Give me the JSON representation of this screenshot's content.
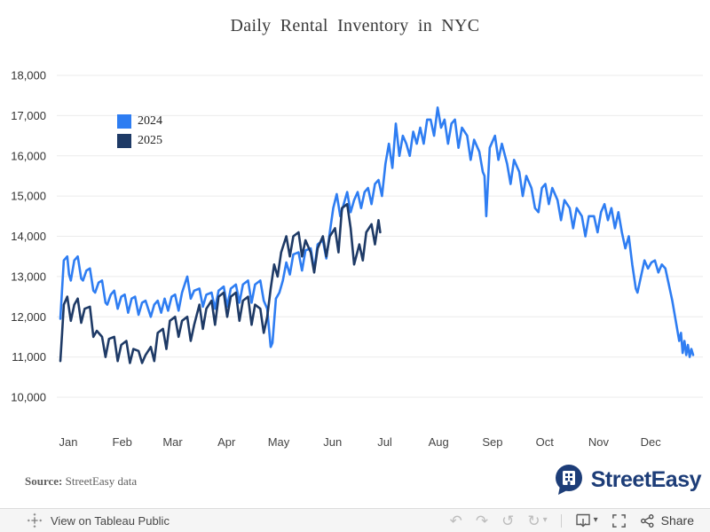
{
  "title": "Daily Rental Inventory in NYC",
  "legend": [
    {
      "label": "2024",
      "color": "#2e7df2"
    },
    {
      "label": "2025",
      "color": "#1e3a66"
    }
  ],
  "source": {
    "label": "Source:",
    "text": "StreetEasy data"
  },
  "brand": {
    "name": "StreetEasy",
    "color": "#1d3d78"
  },
  "footer": {
    "view_link": "View on Tableau Public",
    "share_label": "Share",
    "undo_glyph": "↶",
    "redo_glyph": "↷",
    "revert_glyph": "↺",
    "refresh_glyph": "↻",
    "caret_glyph": "▾"
  },
  "chart_data": {
    "type": "line",
    "title": "Daily Rental Inventory in NYC",
    "grid": "horizontal",
    "legend_position": "top-left-inside",
    "x_unit": "day-of-year",
    "x_axis": {
      "tick_labels": [
        "Jan",
        "Feb",
        "Mar",
        "Apr",
        "May",
        "Jun",
        "Jul",
        "Aug",
        "Sep",
        "Oct",
        "Nov",
        "Dec"
      ],
      "month_start_days": [
        1,
        32,
        61,
        92,
        122,
        153,
        183,
        214,
        245,
        275,
        306,
        336
      ]
    },
    "y_axis": {
      "range": [
        10000,
        18000
      ],
      "ticks": [
        10000,
        11000,
        12000,
        13000,
        14000,
        15000,
        16000,
        17000,
        18000
      ],
      "tick_labels": [
        "10,000",
        "11,000",
        "12,000",
        "13,000",
        "14,000",
        "15,000",
        "16,000",
        "17,000",
        "18,000"
      ]
    },
    "series": [
      {
        "name": "2024",
        "color": "#2e7df2",
        "points": [
          [
            1,
            11950
          ],
          [
            2,
            12700
          ],
          [
            3,
            13400
          ],
          [
            5,
            13500
          ],
          [
            6,
            13050
          ],
          [
            7,
            12900
          ],
          [
            9,
            13400
          ],
          [
            11,
            13500
          ],
          [
            13,
            12950
          ],
          [
            14,
            12900
          ],
          [
            16,
            13150
          ],
          [
            18,
            13200
          ],
          [
            20,
            12650
          ],
          [
            21,
            12600
          ],
          [
            23,
            12850
          ],
          [
            25,
            12900
          ],
          [
            27,
            12350
          ],
          [
            28,
            12300
          ],
          [
            30,
            12550
          ],
          [
            32,
            12650
          ],
          [
            34,
            12200
          ],
          [
            36,
            12500
          ],
          [
            38,
            12550
          ],
          [
            40,
            12100
          ],
          [
            42,
            12450
          ],
          [
            44,
            12500
          ],
          [
            46,
            12050
          ],
          [
            48,
            12350
          ],
          [
            50,
            12400
          ],
          [
            53,
            12000
          ],
          [
            55,
            12300
          ],
          [
            57,
            12400
          ],
          [
            59,
            12100
          ],
          [
            61,
            12450
          ],
          [
            63,
            12150
          ],
          [
            65,
            12500
          ],
          [
            67,
            12550
          ],
          [
            69,
            12150
          ],
          [
            71,
            12600
          ],
          [
            74,
            13000
          ],
          [
            76,
            12450
          ],
          [
            78,
            12650
          ],
          [
            81,
            12700
          ],
          [
            83,
            12250
          ],
          [
            85,
            12550
          ],
          [
            88,
            12600
          ],
          [
            90,
            12200
          ],
          [
            92,
            12650
          ],
          [
            95,
            12750
          ],
          [
            97,
            12250
          ],
          [
            99,
            12700
          ],
          [
            102,
            12800
          ],
          [
            104,
            12350
          ],
          [
            106,
            12800
          ],
          [
            109,
            12900
          ],
          [
            111,
            12350
          ],
          [
            113,
            12800
          ],
          [
            116,
            12900
          ],
          [
            118,
            12400
          ],
          [
            120,
            12200
          ],
          [
            121,
            11700
          ],
          [
            122,
            11250
          ],
          [
            123,
            11350
          ],
          [
            125,
            12450
          ],
          [
            127,
            12600
          ],
          [
            129,
            12900
          ],
          [
            131,
            13350
          ],
          [
            133,
            13050
          ],
          [
            135,
            13550
          ],
          [
            138,
            13600
          ],
          [
            140,
            13150
          ],
          [
            142,
            13650
          ],
          [
            145,
            13700
          ],
          [
            147,
            13150
          ],
          [
            149,
            13800
          ],
          [
            152,
            13900
          ],
          [
            154,
            13450
          ],
          [
            156,
            14100
          ],
          [
            158,
            14700
          ],
          [
            160,
            15050
          ],
          [
            162,
            14500
          ],
          [
            164,
            14800
          ],
          [
            166,
            15100
          ],
          [
            168,
            14600
          ],
          [
            170,
            14900
          ],
          [
            172,
            15100
          ],
          [
            174,
            14700
          ],
          [
            176,
            15100
          ],
          [
            178,
            15200
          ],
          [
            180,
            14800
          ],
          [
            182,
            15300
          ],
          [
            184,
            15400
          ],
          [
            186,
            15000
          ],
          [
            188,
            15800
          ],
          [
            190,
            16300
          ],
          [
            192,
            15700
          ],
          [
            194,
            16800
          ],
          [
            196,
            16000
          ],
          [
            198,
            16500
          ],
          [
            200,
            16300
          ],
          [
            202,
            16000
          ],
          [
            204,
            16600
          ],
          [
            206,
            16300
          ],
          [
            208,
            16700
          ],
          [
            210,
            16300
          ],
          [
            212,
            16900
          ],
          [
            214,
            16900
          ],
          [
            216,
            16500
          ],
          [
            218,
            17200
          ],
          [
            220,
            16700
          ],
          [
            222,
            16900
          ],
          [
            224,
            16300
          ],
          [
            226,
            16800
          ],
          [
            228,
            16900
          ],
          [
            230,
            16200
          ],
          [
            232,
            16700
          ],
          [
            235,
            16500
          ],
          [
            237,
            15900
          ],
          [
            239,
            16400
          ],
          [
            242,
            16100
          ],
          [
            244,
            15600
          ],
          [
            245,
            15500
          ],
          [
            246,
            14500
          ],
          [
            248,
            16200
          ],
          [
            251,
            16500
          ],
          [
            253,
            15900
          ],
          [
            255,
            16300
          ],
          [
            258,
            15800
          ],
          [
            260,
            15300
          ],
          [
            262,
            15900
          ],
          [
            265,
            15600
          ],
          [
            267,
            15000
          ],
          [
            269,
            15500
          ],
          [
            272,
            15200
          ],
          [
            274,
            14700
          ],
          [
            276,
            14600
          ],
          [
            278,
            15200
          ],
          [
            280,
            15300
          ],
          [
            282,
            14800
          ],
          [
            284,
            15200
          ],
          [
            287,
            14900
          ],
          [
            289,
            14400
          ],
          [
            291,
            14900
          ],
          [
            294,
            14700
          ],
          [
            296,
            14200
          ],
          [
            298,
            14700
          ],
          [
            301,
            14500
          ],
          [
            303,
            14000
          ],
          [
            305,
            14500
          ],
          [
            308,
            14500
          ],
          [
            310,
            14100
          ],
          [
            312,
            14600
          ],
          [
            314,
            14800
          ],
          [
            316,
            14400
          ],
          [
            318,
            14700
          ],
          [
            320,
            14200
          ],
          [
            322,
            14600
          ],
          [
            324,
            14100
          ],
          [
            326,
            13700
          ],
          [
            328,
            14000
          ],
          [
            330,
            13300
          ],
          [
            332,
            12700
          ],
          [
            333,
            12600
          ],
          [
            335,
            13000
          ],
          [
            337,
            13400
          ],
          [
            339,
            13200
          ],
          [
            341,
            13350
          ],
          [
            343,
            13400
          ],
          [
            345,
            13100
          ],
          [
            347,
            13300
          ],
          [
            349,
            13200
          ],
          [
            351,
            12800
          ],
          [
            353,
            12400
          ],
          [
            355,
            11900
          ],
          [
            357,
            11400
          ],
          [
            358,
            11600
          ],
          [
            359,
            11100
          ],
          [
            360,
            11400
          ],
          [
            361,
            11050
          ],
          [
            362,
            11300
          ],
          [
            363,
            11000
          ],
          [
            364,
            11200
          ],
          [
            365,
            11050
          ]
        ]
      },
      {
        "name": "2025",
        "color": "#1e3a66",
        "points": [
          [
            1,
            10900
          ],
          [
            2,
            11600
          ],
          [
            3,
            12300
          ],
          [
            5,
            12500
          ],
          [
            7,
            11900
          ],
          [
            9,
            12300
          ],
          [
            11,
            12450
          ],
          [
            13,
            11850
          ],
          [
            15,
            12200
          ],
          [
            18,
            12250
          ],
          [
            20,
            11500
          ],
          [
            22,
            11650
          ],
          [
            25,
            11500
          ],
          [
            27,
            11000
          ],
          [
            29,
            11450
          ],
          [
            32,
            11500
          ],
          [
            34,
            10900
          ],
          [
            36,
            11300
          ],
          [
            39,
            11400
          ],
          [
            41,
            10850
          ],
          [
            43,
            11200
          ],
          [
            46,
            11150
          ],
          [
            48,
            10850
          ],
          [
            50,
            11050
          ],
          [
            53,
            11250
          ],
          [
            55,
            10900
          ],
          [
            57,
            11600
          ],
          [
            60,
            11700
          ],
          [
            62,
            11200
          ],
          [
            64,
            11900
          ],
          [
            67,
            12000
          ],
          [
            69,
            11500
          ],
          [
            71,
            11900
          ],
          [
            74,
            12000
          ],
          [
            76,
            11400
          ],
          [
            78,
            11800
          ],
          [
            81,
            12300
          ],
          [
            83,
            11700
          ],
          [
            85,
            12200
          ],
          [
            88,
            12400
          ],
          [
            90,
            11800
          ],
          [
            92,
            12500
          ],
          [
            95,
            12600
          ],
          [
            97,
            12000
          ],
          [
            99,
            12500
          ],
          [
            102,
            12600
          ],
          [
            104,
            11900
          ],
          [
            106,
            12400
          ],
          [
            109,
            12500
          ],
          [
            111,
            11800
          ],
          [
            113,
            12300
          ],
          [
            116,
            12200
          ],
          [
            118,
            11600
          ],
          [
            120,
            12000
          ],
          [
            122,
            12700
          ],
          [
            124,
            13300
          ],
          [
            126,
            13000
          ],
          [
            128,
            13600
          ],
          [
            131,
            14000
          ],
          [
            133,
            13500
          ],
          [
            135,
            14000
          ],
          [
            138,
            14100
          ],
          [
            140,
            13500
          ],
          [
            142,
            13900
          ],
          [
            145,
            13600
          ],
          [
            147,
            13100
          ],
          [
            149,
            13700
          ],
          [
            152,
            14000
          ],
          [
            154,
            13500
          ],
          [
            156,
            14000
          ],
          [
            159,
            14200
          ],
          [
            161,
            13600
          ],
          [
            163,
            14700
          ],
          [
            166,
            14800
          ],
          [
            168,
            14200
          ],
          [
            170,
            13300
          ],
          [
            173,
            13800
          ],
          [
            175,
            13400
          ],
          [
            177,
            14100
          ],
          [
            180,
            14300
          ],
          [
            182,
            13800
          ],
          [
            184,
            14400
          ],
          [
            185,
            14100
          ]
        ]
      }
    ]
  }
}
